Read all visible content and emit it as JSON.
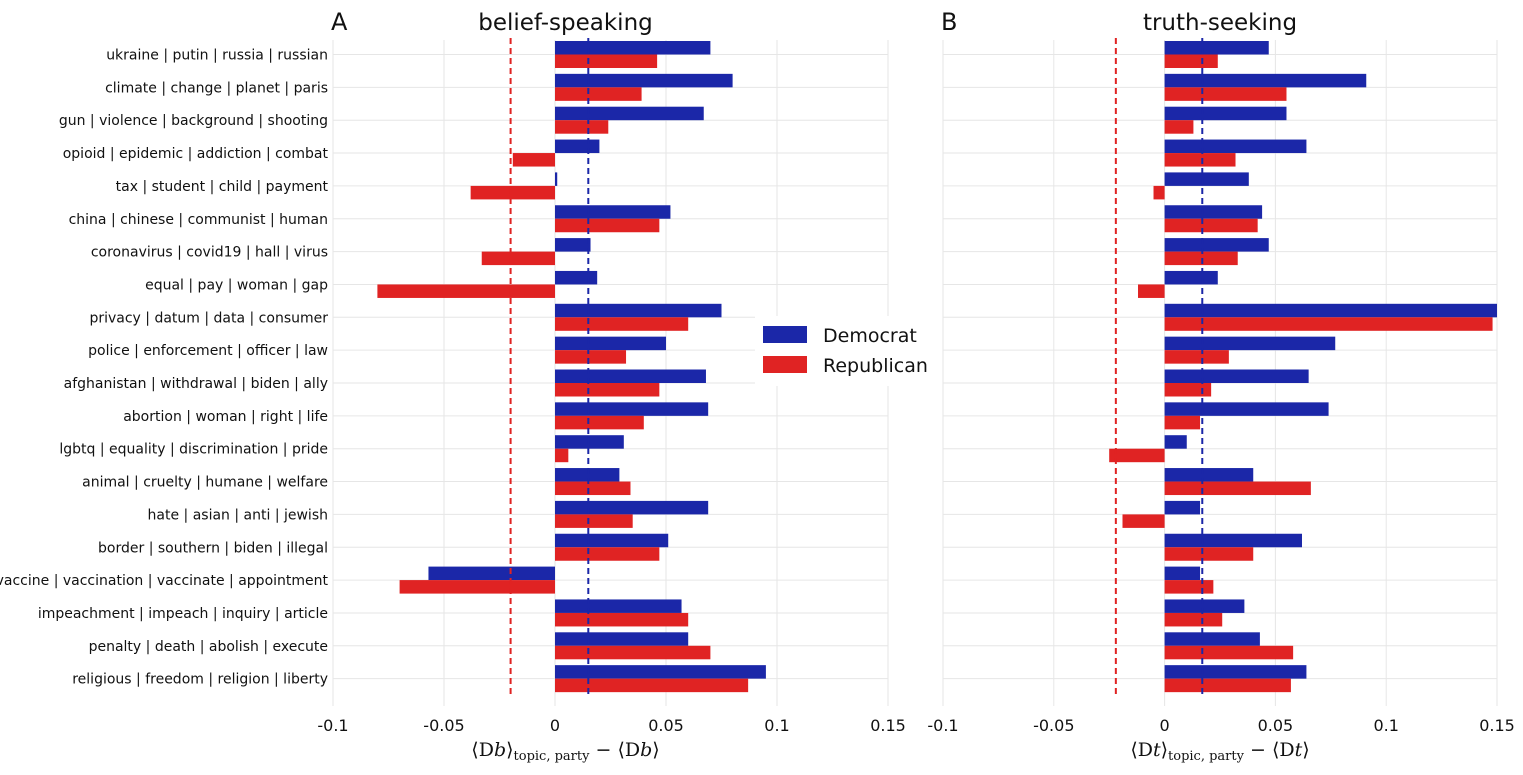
{
  "legend": {
    "position": "center-right-of-panel-A"
  },
  "colors": {
    "democrat": "#1b27a8",
    "republican": "#e02323",
    "grid": "#e6e6e6"
  },
  "chart_data": [
    {
      "type": "bar",
      "orientation": "horizontal",
      "panel_letter": "A",
      "title": "belief-speaking",
      "xlabel_main": "⟨D",
      "xlabel_sub_var": "b",
      "xlabel_sub": "topic, party",
      "xlabel_tail": "− ⟨D",
      "xlabel_tail_sub": "b",
      "xlim": [
        -0.1,
        0.15
      ],
      "xticks": [
        -0.1,
        -0.05,
        0,
        0.05,
        0.1,
        0.15
      ],
      "xtick_labels": [
        "-0.1",
        "-0.05",
        "0",
        "0.05",
        "0.1",
        "0.15"
      ],
      "grid": true,
      "show_category_labels": true,
      "categories": [
        "ukraine | putin | russia | russian",
        "climate | change | planet | paris",
        "gun | violence | background | shooting",
        "opioid | epidemic | addiction | combat",
        "tax | student | child | payment",
        "china | chinese | communist | human",
        "coronavirus | covid19 | hall | virus",
        "equal | pay | woman | gap",
        "privacy | datum | data | consumer",
        "police | enforcement | officer | law",
        "afghanistan | withdrawal | biden | ally",
        "abortion | woman | right | life",
        "lgbtq | equality | discrimination | pride",
        "animal | cruelty | humane | welfare",
        "hate | asian | anti | jewish",
        "border | southern | biden | illegal",
        "vaccine | vaccination | vaccinate | appointment",
        "impeachment | impeach | inquiry | article",
        "penalty | death | abolish | execute",
        "religious | freedom | religion | liberty"
      ],
      "series": [
        {
          "name": "Democrat",
          "color": "#1b27a8",
          "values": [
            0.07,
            0.08,
            0.067,
            0.02,
            0.001,
            0.052,
            0.016,
            0.019,
            0.075,
            0.05,
            0.068,
            0.069,
            0.031,
            0.029,
            0.069,
            0.051,
            -0.057,
            0.057,
            0.06,
            0.095
          ],
          "mean_line": 0.015
        },
        {
          "name": "Republican",
          "color": "#e02323",
          "values": [
            0.046,
            0.039,
            0.024,
            -0.019,
            -0.038,
            0.047,
            -0.033,
            -0.08,
            0.06,
            0.032,
            0.047,
            0.04,
            0.006,
            0.034,
            0.035,
            0.047,
            -0.07,
            0.06,
            0.07,
            0.087
          ],
          "mean_line": -0.02
        }
      ]
    },
    {
      "type": "bar",
      "orientation": "horizontal",
      "panel_letter": "B",
      "title": "truth-seeking",
      "xlabel_main": "⟨D",
      "xlabel_sub_var": "t",
      "xlabel_sub": "topic, party",
      "xlabel_tail": "− ⟨D",
      "xlabel_tail_sub": "t",
      "xlim": [
        -0.1,
        0.15
      ],
      "xticks": [
        -0.1,
        -0.05,
        0,
        0.05,
        0.1,
        0.15
      ],
      "xtick_labels": [
        "-0.1",
        "-0.05",
        "0",
        "0.05",
        "0.1",
        "0.15"
      ],
      "grid": true,
      "show_category_labels": false,
      "series": [
        {
          "name": "Democrat",
          "color": "#1b27a8",
          "values": [
            0.047,
            0.091,
            0.055,
            0.064,
            0.038,
            0.044,
            0.047,
            0.024,
            0.15,
            0.077,
            0.065,
            0.074,
            0.01,
            0.04,
            0.016,
            0.062,
            0.016,
            0.036,
            0.043,
            0.064
          ],
          "mean_line": 0.017
        },
        {
          "name": "Republican",
          "color": "#e02323",
          "values": [
            0.024,
            0.055,
            0.013,
            0.032,
            -0.005,
            0.042,
            0.033,
            -0.012,
            0.148,
            0.029,
            0.021,
            0.016,
            -0.025,
            0.066,
            -0.019,
            0.04,
            0.022,
            0.026,
            0.058,
            0.057
          ],
          "mean_line": -0.022
        }
      ]
    }
  ]
}
